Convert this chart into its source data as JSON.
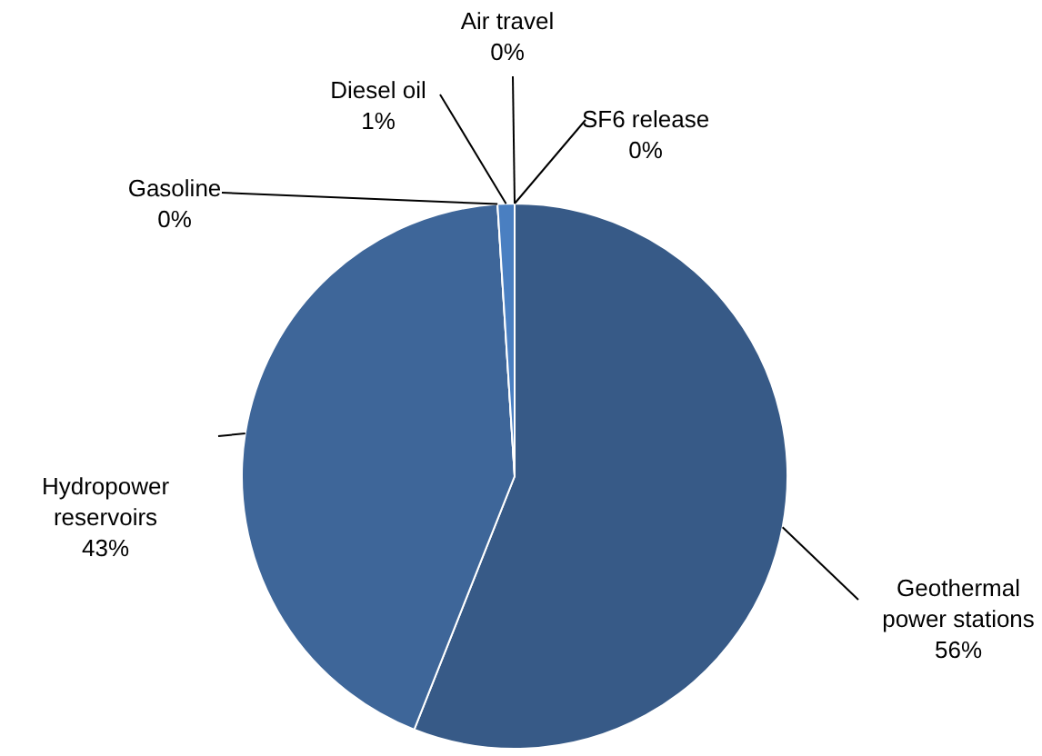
{
  "chart_data": {
    "type": "pie",
    "categories": [
      "Geothermal power stations",
      "Hydropower reservoirs",
      "Gasoline",
      "Diesel oil",
      "Air travel",
      "SF6 release"
    ],
    "values": [
      56,
      43,
      0,
      1,
      0,
      0
    ],
    "value_labels": [
      "56%",
      "43%",
      "0%",
      "1%",
      "0%",
      "0%"
    ],
    "colors": [
      "#375a87",
      "#3e6699",
      "#4574b0",
      "#4a7fc1",
      "#a9c4e8",
      "#c6d8ef"
    ]
  }
}
